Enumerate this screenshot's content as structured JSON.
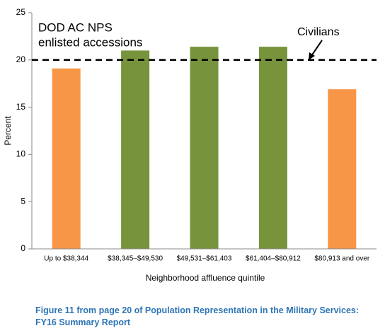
{
  "chart_data": {
    "type": "bar",
    "categories": [
      "Up to $38,344",
      "$38,345–$49,530",
      "$49,531–$61,403",
      "$61,404–$80,912",
      "$80,913 and over"
    ],
    "values": [
      19.1,
      21.0,
      21.4,
      21.4,
      16.9
    ],
    "colors": [
      "#f79646",
      "#77933c",
      "#77933c",
      "#77933c",
      "#f79646"
    ],
    "ylim": [
      0,
      25
    ],
    "yticks": [
      0,
      5,
      10,
      15,
      20,
      25
    ],
    "grid": false,
    "y_label": "Percent",
    "x_label": "Neighborhood affluence quintile",
    "reference_line": {
      "value": 20,
      "label": "Civilians"
    },
    "annotation": [
      "DOD AC NPS",
      "enlisted accessions"
    ]
  },
  "caption": [
    "Figure 11 from page 20 of Population Representation in the Military Services:",
    "FY16 Summary Report"
  ]
}
